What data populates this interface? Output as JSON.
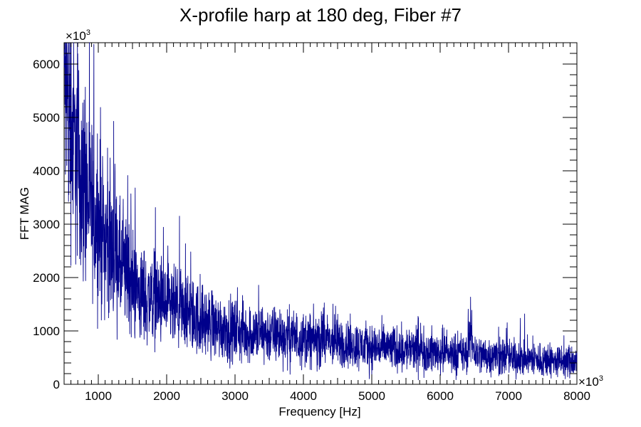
{
  "chart_data": {
    "type": "line",
    "title": "X-profile harp at 180 deg, Fiber #7",
    "xlabel": "Frequency [Hz]",
    "ylabel": "FFT MAG",
    "x_multiplier": "×10",
    "x_multiplier_exp": "3",
    "y_multiplier": "×10",
    "y_multiplier_exp": "3",
    "xlim": [
      500,
      8000
    ],
    "ylim": [
      0,
      6400
    ],
    "x_ticks": [
      1000,
      2000,
      3000,
      4000,
      5000,
      6000,
      7000,
      8000
    ],
    "x_tick_labels": [
      "1000",
      "2000",
      "3000",
      "4000",
      "5000",
      "6000",
      "7000",
      "8000"
    ],
    "y_ticks": [
      0,
      1000,
      2000,
      3000,
      4000,
      5000,
      6000
    ],
    "y_tick_labels": [
      "0",
      "1000",
      "2000",
      "3000",
      "4000",
      "5000",
      "6000"
    ],
    "grid": false,
    "series": [
      {
        "color": "#00008b",
        "x": [
          500,
          550,
          600,
          650,
          700,
          750,
          800,
          850,
          900,
          1000,
          1100,
          1200,
          1300,
          1400,
          1500,
          1600,
          1700,
          1800,
          1900,
          2000,
          2100,
          2200,
          2300,
          2400,
          2500,
          2600,
          2700,
          2800,
          2900,
          3000,
          3200,
          3400,
          3600,
          3800,
          4000,
          4200,
          4400,
          4600,
          4800,
          5000,
          5200,
          5400,
          5600,
          5800,
          6000,
          6200,
          6400,
          6450,
          6500,
          6600,
          6800,
          7000,
          7200,
          7400,
          7600,
          7800,
          8000
        ],
        "values": [
          5900,
          5300,
          4900,
          4500,
          4200,
          3900,
          3700,
          3500,
          3300,
          3000,
          2750,
          2500,
          2250,
          2050,
          1900,
          1700,
          1600,
          1700,
          1550,
          1450,
          1400,
          1350,
          1300,
          1250,
          1200,
          1150,
          1100,
          1050,
          1000,
          1000,
          950,
          950,
          920,
          880,
          850,
          820,
          800,
          760,
          720,
          700,
          680,
          660,
          640,
          620,
          600,
          580,
          560,
          1000,
          600,
          550,
          530,
          500,
          480,
          460,
          440,
          420,
          400
        ]
      }
    ]
  }
}
